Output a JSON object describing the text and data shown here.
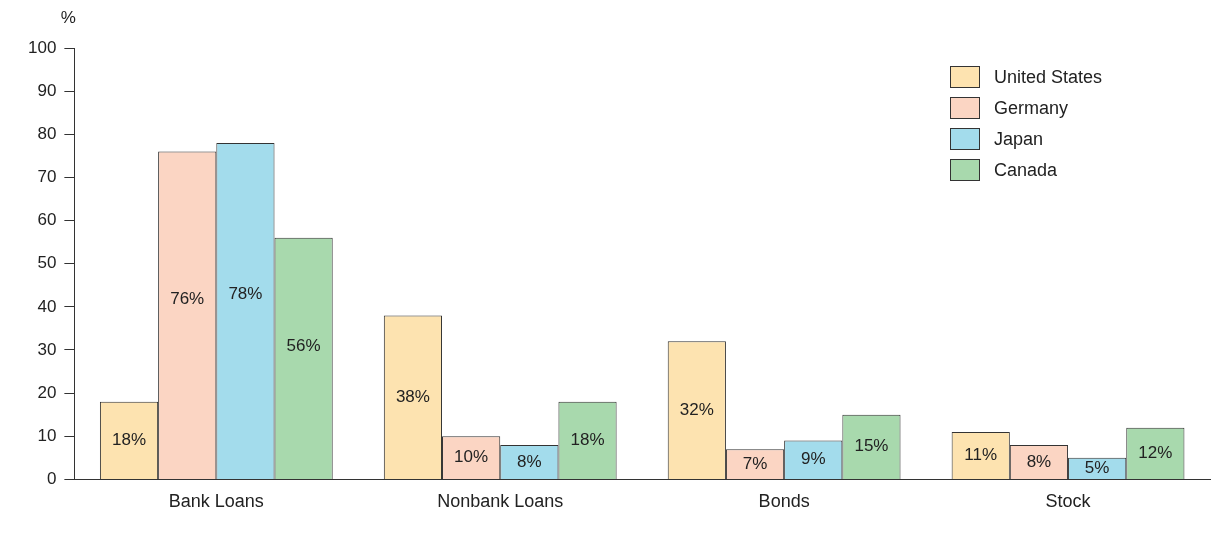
{
  "chart_data": {
    "type": "bar",
    "ylabel": "%",
    "categories": [
      "Bank Loans",
      "Nonbank Loans",
      "Bonds",
      "Stock"
    ],
    "series": [
      {
        "name": "United States",
        "color": "#fde3b0",
        "values": [
          18,
          38,
          32,
          11
        ],
        "value_labels": [
          "18%",
          "38%",
          "32%",
          "11%"
        ]
      },
      {
        "name": "Germany",
        "color": "#fbd5c3",
        "values": [
          76,
          10,
          7,
          8
        ],
        "value_labels": [
          "76%",
          "10%",
          "7%",
          "8%"
        ]
      },
      {
        "name": "Japan",
        "color": "#a3dcec",
        "values": [
          78,
          8,
          9,
          5
        ],
        "value_labels": [
          "78%",
          "8%",
          "9%",
          "5%"
        ]
      },
      {
        "name": "Canada",
        "color": "#a8d9ad",
        "values": [
          56,
          18,
          15,
          12
        ],
        "value_labels": [
          "56%",
          "18%",
          "15%",
          "12%"
        ]
      }
    ],
    "ylim": [
      0,
      100
    ],
    "yticks": [
      0,
      10,
      20,
      30,
      40,
      50,
      60,
      70,
      80,
      90,
      100
    ],
    "grid": false,
    "legend": "top right"
  }
}
